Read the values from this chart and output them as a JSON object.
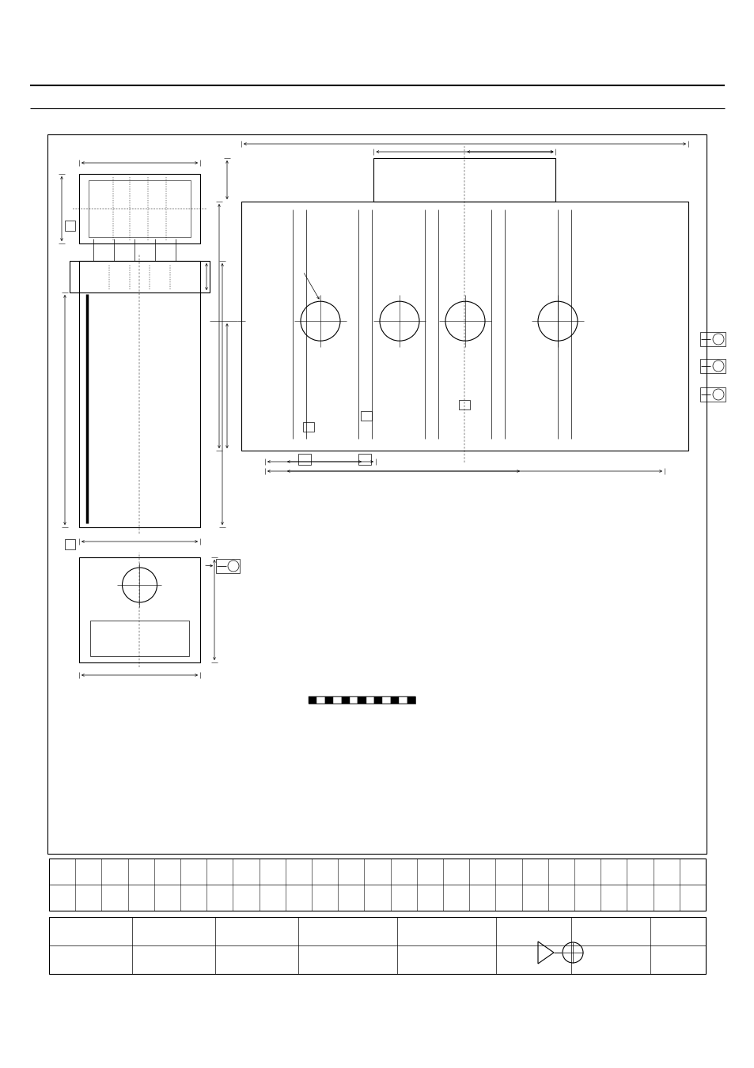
{
  "bg_color": "#ffffff",
  "page_width": 9.54,
  "page_height": 13.51
}
